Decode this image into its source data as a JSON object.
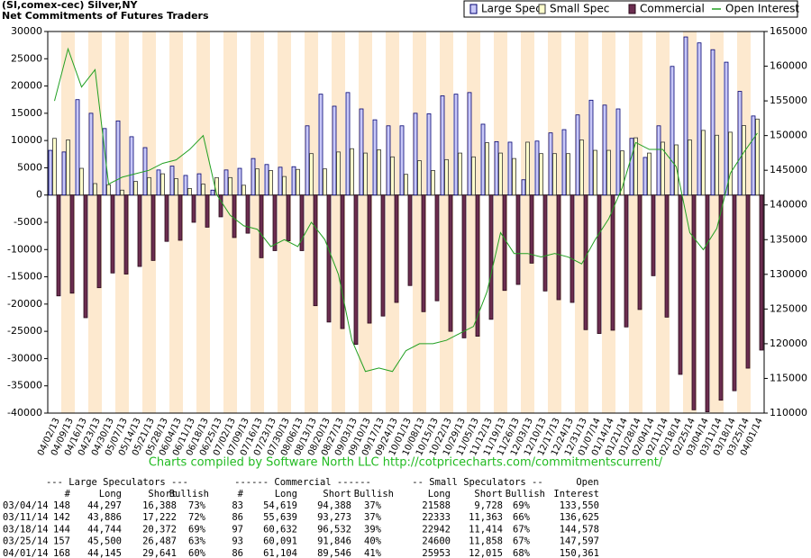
{
  "chart_data": {
    "type": "bar",
    "title": "(SI,comex-cec) Silver,NY",
    "subtitle": "Net Commitments of Futures Traders",
    "footer": "Charts compiled by Software North LLC  http://cotpricecharts.com/commitmentscurrent/",
    "categories": [
      "04/02/13",
      "04/09/13",
      "04/16/13",
      "04/23/13",
      "04/30/13",
      "05/07/13",
      "05/14/13",
      "05/21/13",
      "05/28/13",
      "06/04/13",
      "06/11/13",
      "06/18/13",
      "06/25/13",
      "07/02/13",
      "07/09/13",
      "07/16/13",
      "07/23/13",
      "07/30/13",
      "08/06/13",
      "08/13/13",
      "08/20/13",
      "08/27/13",
      "09/03/13",
      "09/10/13",
      "09/17/13",
      "09/24/13",
      "10/01/13",
      "10/08/13",
      "10/15/13",
      "10/22/13",
      "10/29/13",
      "11/05/13",
      "11/12/13",
      "11/19/13",
      "11/26/13",
      "12/03/13",
      "12/10/13",
      "12/17/13",
      "12/24/13",
      "12/31/13",
      "01/07/14",
      "01/14/14",
      "01/21/14",
      "01/28/14",
      "02/04/14",
      "02/11/14",
      "02/18/14",
      "02/25/14",
      "03/04/14",
      "03/11/14",
      "03/18/14",
      "03/25/14",
      "04/01/14"
    ],
    "series": [
      {
        "name": "Large Spec",
        "color": "#c8c8f8",
        "values": [
          8200,
          7900,
          17500,
          15000,
          12200,
          13600,
          10700,
          8700,
          4600,
          5300,
          3600,
          3900,
          900,
          4600,
          4900,
          6700,
          5600,
          5100,
          5200,
          12700,
          18500,
          16300,
          18800,
          15800,
          13800,
          12700,
          12700,
          15000,
          14900,
          18200,
          18500,
          18800,
          13000,
          9800,
          9700,
          2800,
          9900,
          11400,
          12000,
          14700,
          17400,
          16500,
          15800,
          10400,
          6900,
          12700,
          23600,
          29000,
          27909,
          26664,
          24372,
          19013,
          14504
        ]
      },
      {
        "name": "Small Spec",
        "color": "#ffffcc",
        "values": [
          10400,
          10100,
          4900,
          2100,
          1900,
          900,
          2500,
          3200,
          3900,
          3000,
          1200,
          2000,
          3200,
          3200,
          1800,
          4800,
          4500,
          3400,
          4700,
          7600,
          4800,
          7900,
          8500,
          7700,
          8300,
          7000,
          3800,
          6300,
          4500,
          6500,
          7700,
          7000,
          9600,
          7700,
          6700,
          9700,
          7600,
          7600,
          7600,
          10100,
          8200,
          8200,
          8100,
          10500,
          7700,
          9700,
          9200,
          10100,
          11860,
          10970,
          11528,
          12742,
          13938
        ]
      },
      {
        "name": "Commercial",
        "color": "#6b2d50",
        "values": [
          -18500,
          -18000,
          -22500,
          -17000,
          -14300,
          -14500,
          -13100,
          -12000,
          -8500,
          -8300,
          -5000,
          -5900,
          -4000,
          -7800,
          -7000,
          -11500,
          -10200,
          -8400,
          -10200,
          -20300,
          -23300,
          -24500,
          -27400,
          -23500,
          -22200,
          -19700,
          -16600,
          -21400,
          -19400,
          -25000,
          -26200,
          -25900,
          -22800,
          -17500,
          -16400,
          -12500,
          -17600,
          -19200,
          -19700,
          -24700,
          -25400,
          -24800,
          -24200,
          -21000,
          -14800,
          -22400,
          -32900,
          -39400,
          -39769,
          -37634,
          -35900,
          -31755,
          -28442
        ]
      },
      {
        "name": "Open Interest",
        "color": "#22a022",
        "axis": "y2",
        "values": [
          155000,
          162500,
          157000,
          159500,
          143000,
          144000,
          144500,
          145000,
          146000,
          146500,
          148000,
          150000,
          141500,
          138500,
          137000,
          136500,
          134000,
          135000,
          134000,
          137500,
          135000,
          130000,
          120500,
          116000,
          116500,
          116000,
          119000,
          120000,
          120000,
          120500,
          121500,
          122500,
          127500,
          136000,
          133000,
          133000,
          132500,
          133000,
          132500,
          131500,
          135000,
          138000,
          142500,
          149000,
          148000,
          148000,
          145500,
          136000,
          133550,
          136625,
          144578,
          147597,
          150361
        ]
      }
    ],
    "ylim": [
      -40000,
      30000
    ],
    "yticks": [
      -40000,
      -35000,
      -30000,
      -25000,
      -20000,
      -15000,
      -10000,
      -5000,
      0,
      5000,
      10000,
      15000,
      20000,
      25000,
      30000
    ],
    "y2lim": [
      110000,
      165000
    ],
    "y2ticks": [
      110000,
      115000,
      120000,
      125000,
      130000,
      135000,
      140000,
      145000,
      150000,
      155000,
      160000,
      165000
    ],
    "grid": false,
    "legend": "top-right"
  },
  "table": {
    "header1": [
      "--- Large Speculators ---",
      "------ Commercial ------",
      "-- Small Speculators --",
      "Open"
    ],
    "header2": [
      "#",
      "Long",
      "Short",
      "Bullish",
      "#",
      "Long",
      "Short",
      "Bullish",
      "Long",
      "Short",
      "Bullish",
      "Interest"
    ],
    "rows": [
      [
        "03/04/14",
        "148",
        "44,297",
        "16,388",
        "73%",
        "83",
        "54,619",
        "94,388",
        "37%",
        "21588",
        "9,728",
        "69%",
        "133,550"
      ],
      [
        "03/11/14",
        "142",
        "43,886",
        "17,222",
        "72%",
        "86",
        "55,639",
        "93,273",
        "37%",
        "22333",
        "11,363",
        "66%",
        "136,625"
      ],
      [
        "03/18/14",
        "144",
        "44,744",
        "20,372",
        "69%",
        "97",
        "60,632",
        "96,532",
        "39%",
        "22942",
        "11,414",
        "67%",
        "144,578"
      ],
      [
        "03/25/14",
        "157",
        "45,500",
        "26,487",
        "63%",
        "93",
        "60,091",
        "91,846",
        "40%",
        "24600",
        "11,858",
        "67%",
        "147,597"
      ],
      [
        "04/01/14",
        "168",
        "44,145",
        "29,641",
        "60%",
        "86",
        "61,104",
        "89,546",
        "41%",
        "25953",
        "12,015",
        "68%",
        "150,361"
      ]
    ]
  }
}
